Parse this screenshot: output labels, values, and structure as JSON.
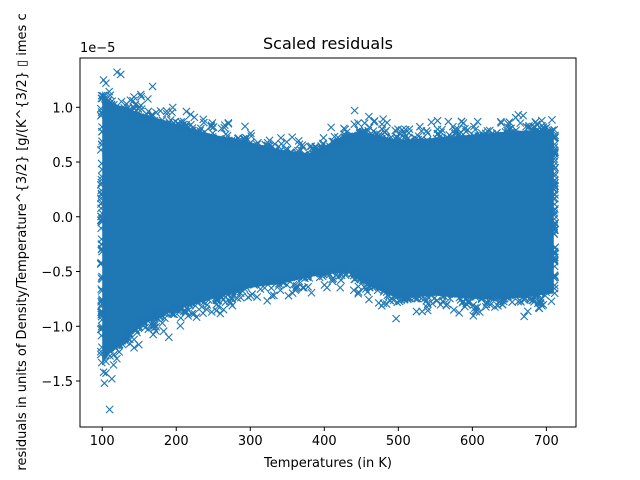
{
  "chart_data": {
    "type": "scatter",
    "title": "Scaled residuals",
    "xlabel": "Temperatures (in K)",
    "ylabel": "residuals in units of Density/Temperature^{3/2} [g/(K^{3/2} ▯ imes c",
    "offset_text": "1e−5",
    "xlim": [
      70,
      740
    ],
    "ylim": [
      -1.92,
      1.45
    ],
    "x_ticks": [
      100,
      200,
      300,
      400,
      500,
      600,
      700
    ],
    "x_tick_labels": [
      "100",
      "200",
      "300",
      "400",
      "500",
      "600",
      "700"
    ],
    "y_ticks": [
      -1.5,
      -1.0,
      -0.5,
      0.0,
      0.5,
      1.0
    ],
    "y_tick_labels": [
      "−1.5",
      "−1.0",
      "−0.5",
      "0.0",
      "0.5",
      "1.0"
    ],
    "marker": "x",
    "color": "#1f77b4",
    "x_range": [
      100,
      710
    ],
    "envelope": [
      {
        "x": 100,
        "upper": 1.15,
        "lower": -1.35
      },
      {
        "x": 110,
        "upper": 1.05,
        "lower": -1.25
      },
      {
        "x": 130,
        "upper": 1.0,
        "lower": -1.15
      },
      {
        "x": 150,
        "upper": 0.95,
        "lower": -1.0
      },
      {
        "x": 200,
        "upper": 0.85,
        "lower": -0.85
      },
      {
        "x": 250,
        "upper": 0.75,
        "lower": -0.75
      },
      {
        "x": 300,
        "upper": 0.68,
        "lower": -0.65
      },
      {
        "x": 350,
        "upper": 0.6,
        "lower": -0.6
      },
      {
        "x": 380,
        "upper": 0.58,
        "lower": -0.55
      },
      {
        "x": 430,
        "upper": 0.75,
        "lower": -0.5
      },
      {
        "x": 450,
        "upper": 0.78,
        "lower": -0.6
      },
      {
        "x": 500,
        "upper": 0.7,
        "lower": -0.75
      },
      {
        "x": 550,
        "upper": 0.72,
        "lower": -0.72
      },
      {
        "x": 600,
        "upper": 0.75,
        "lower": -0.75
      },
      {
        "x": 650,
        "upper": 0.78,
        "lower": -0.75
      },
      {
        "x": 710,
        "upper": 0.8,
        "lower": -0.7
      }
    ],
    "outliers": [
      {
        "x": 110,
        "y": -1.76
      },
      {
        "x": 103,
        "y": -1.52
      },
      {
        "x": 113,
        "y": -1.48
      },
      {
        "x": 120,
        "y": 1.32
      },
      {
        "x": 125,
        "y": 1.3
      },
      {
        "x": 105,
        "y": 1.22
      },
      {
        "x": 168,
        "y": 1.19
      },
      {
        "x": 190,
        "y": -1.1
      },
      {
        "x": 441,
        "y": 0.97
      },
      {
        "x": 497,
        "y": -0.93
      },
      {
        "x": 610,
        "y": -0.87
      },
      {
        "x": 670,
        "y": -0.91
      },
      {
        "x": 515,
        "y": 0.8
      },
      {
        "x": 575,
        "y": -0.85
      },
      {
        "x": 250,
        "y": 0.82
      }
    ]
  }
}
